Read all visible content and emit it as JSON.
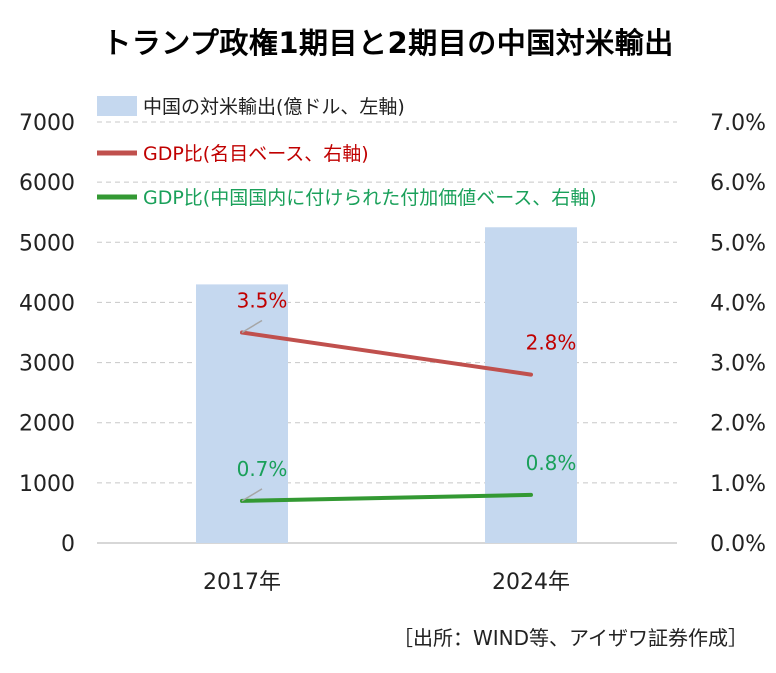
{
  "title": "トランプ政権1期目と2期目の中国対米輸出",
  "source": "［出所：WIND等、アイザワ証券作成］",
  "chart_data": {
    "type": "bar",
    "categories": [
      "2017年",
      "2024年"
    ],
    "left_axis": {
      "ylim": [
        0,
        7000
      ],
      "ticks": [
        "0",
        "1000",
        "2000",
        "3000",
        "4000",
        "5000",
        "6000",
        "7000"
      ]
    },
    "right_axis": {
      "ylim": [
        0,
        7
      ],
      "ticks": [
        "0.0%",
        "1.0%",
        "2.0%",
        "3.0%",
        "4.0%",
        "5.0%",
        "6.0%",
        "7.0%"
      ]
    },
    "grid": true,
    "legend": "top",
    "series": [
      {
        "name": "中国の対米輸出(億ドル、左軸)",
        "kind": "bar",
        "axis": "left",
        "color": "#c5d8ef",
        "values": [
          4300,
          5250
        ]
      },
      {
        "name": "GDP比(名目ベース、右軸)",
        "kind": "line",
        "axis": "right",
        "color": "#c0504d",
        "values": [
          3.5,
          2.8
        ],
        "labels": [
          "3.5%",
          "2.8%"
        ],
        "label_color": "#c00000"
      },
      {
        "name": "GDP比(中国国内に付けられた付加価値ベース、右軸)",
        "kind": "line",
        "axis": "right",
        "color": "#339933",
        "values": [
          0.7,
          0.8
        ],
        "labels": [
          "0.7%",
          "0.8%"
        ],
        "label_color": "#1aa05a"
      }
    ]
  }
}
